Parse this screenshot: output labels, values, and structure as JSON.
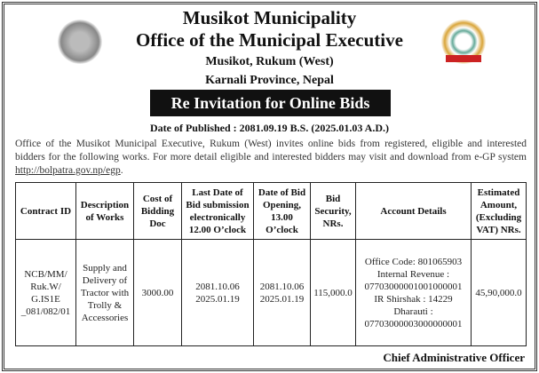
{
  "header": {
    "title": "Musikot Municipality",
    "subtitle": "Office of the Municipal Executive",
    "address": "Musikot, Rukum (West)",
    "province": "Karnali Province, Nepal"
  },
  "banner": "Re Invitation for Online Bids",
  "published": "Date of Published : 2081.09.19 B.S. (2025.01.03 A.D.)",
  "intro": "Office of the Musikot Municipal Executive, Rukum (West) invites online bids from registered, eligible and interested bidders for the following works. For more detail eligible and interested bidders may visit and download from e-GP system ",
  "link": "http://bolpatra.gov.np/egp",
  "link_suffix": ".",
  "table": {
    "headers": [
      "Contract ID",
      "Description of Works",
      "Cost of Bidding Doc",
      "Last Date of Bid submission electronically 12.00 O’clock",
      "Date of Bid Opening, 13.00 O’clock",
      "Bid Security, NRs.",
      "Account Details",
      "Estimated Amount, (Excluding VAT) NRs."
    ],
    "row": {
      "contract_id": "NCB/MM/ Ruk.W/ G.IS1E _081/082/01",
      "description": "Supply and Delivery of Tractor with Trolly & Accessories",
      "cost": "3000.00",
      "last_date_bs": "2081.10.06",
      "last_date_ad": "2025.01.19",
      "opening_bs": "2081.10.06",
      "opening_ad": "2025.01.19",
      "security": "115,000.0",
      "account": [
        "Office Code: 801065903",
        "Internal Revenue :",
        "07703000001001000001",
        "IR Shirshak : 14229",
        "Dharauti :",
        "07703000003000000001"
      ],
      "estimate": "45,90,000.0"
    }
  },
  "signature": "Chief Administrative Officer"
}
